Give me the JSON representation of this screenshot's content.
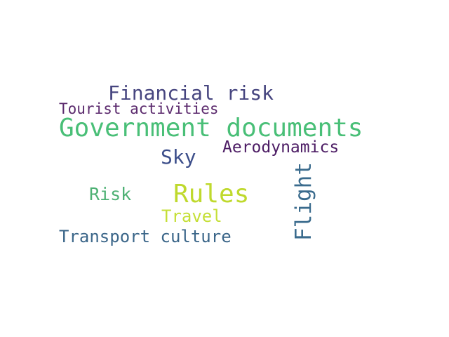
{
  "words": [
    {
      "text": "Financial risk",
      "color": "#46457f"
    },
    {
      "text": "Tourist activities",
      "color": "#5b2a6d"
    },
    {
      "text": "Government documents",
      "color": "#49bf77"
    },
    {
      "text": "Aerodynamics",
      "color": "#4c1c64"
    },
    {
      "text": "Sky",
      "color": "#3c4e8a"
    },
    {
      "text": "Rules",
      "color": "#bfd92d"
    },
    {
      "text": "Risk",
      "color": "#4eb174"
    },
    {
      "text": "Travel",
      "color": "#c5df37"
    },
    {
      "text": "Transport culture",
      "color": "#3b6689"
    },
    {
      "text": "Flight",
      "color": "#3a6b8d"
    }
  ]
}
